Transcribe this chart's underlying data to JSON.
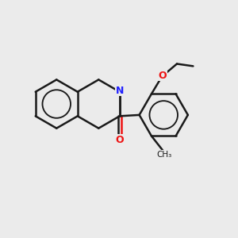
{
  "background_color": "#ebebeb",
  "bond_color": "#1a1a1a",
  "nitrogen_color": "#2020ff",
  "oxygen_color": "#ee1111",
  "bond_width": 1.8,
  "figsize": [
    3.0,
    3.0
  ],
  "dpi": 100,
  "xlim": [
    0,
    10
  ],
  "ylim": [
    0,
    10
  ]
}
